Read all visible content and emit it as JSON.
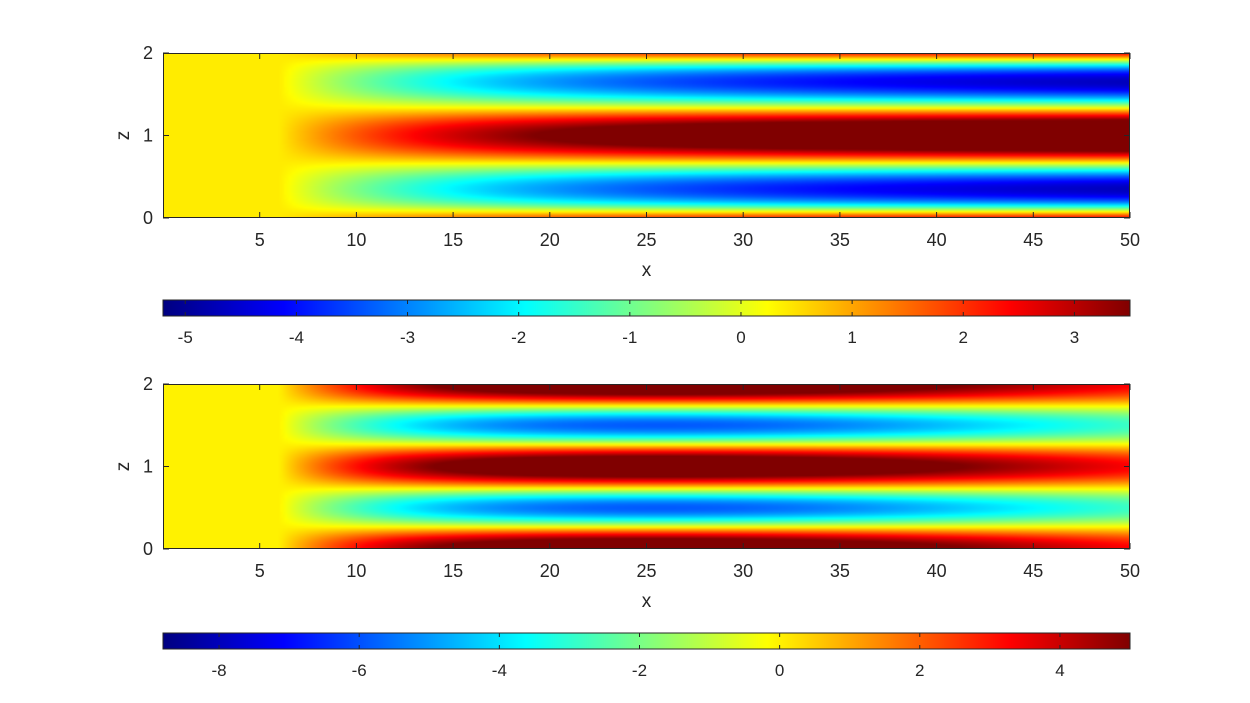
{
  "chart_data": [
    {
      "type": "heatmap",
      "xlabel": "x",
      "ylabel": "z",
      "xlim": [
        0,
        50
      ],
      "ylim": [
        0,
        2
      ],
      "xticks": [
        5,
        10,
        15,
        20,
        25,
        30,
        35,
        40,
        45,
        50
      ],
      "yticks": [
        0,
        1,
        2
      ],
      "colormap": "jet",
      "field": {
        "onset_x": 6,
        "uniform_value": 0.4,
        "profile": "vertically symmetric about z=1; bands: low (blue) near z=0.35 and z=1.65, high (red) at z=0, z=1, z=2",
        "high_max": 3.5,
        "low_min": -5.2
      },
      "colorbar": {
        "orientation": "horizontal",
        "clim": [
          -5.2,
          3.5
        ],
        "ticks": [
          -5,
          -4,
          -3,
          -2,
          -1,
          0,
          1,
          2,
          3
        ]
      }
    },
    {
      "type": "heatmap",
      "xlabel": "x",
      "ylabel": "z",
      "xlim": [
        0,
        50
      ],
      "ylim": [
        0,
        2
      ],
      "xticks": [
        5,
        10,
        15,
        20,
        25,
        30,
        35,
        40,
        45,
        50
      ],
      "yticks": [
        0,
        1,
        2
      ],
      "colormap": "jet",
      "field": {
        "onset_x": 6,
        "uniform_value": 0,
        "profile": "vertically symmetric about z=1; bands: low (blue) near z=0.5 and z=1.5, high (red) at z=0, z=1, z=2; peaks near x=25",
        "high_max": 5,
        "low_min": -8.8
      },
      "colorbar": {
        "orientation": "horizontal",
        "clim": [
          -8.8,
          5
        ],
        "ticks": [
          -8,
          -6,
          -4,
          -2,
          0,
          2,
          4
        ]
      }
    }
  ]
}
